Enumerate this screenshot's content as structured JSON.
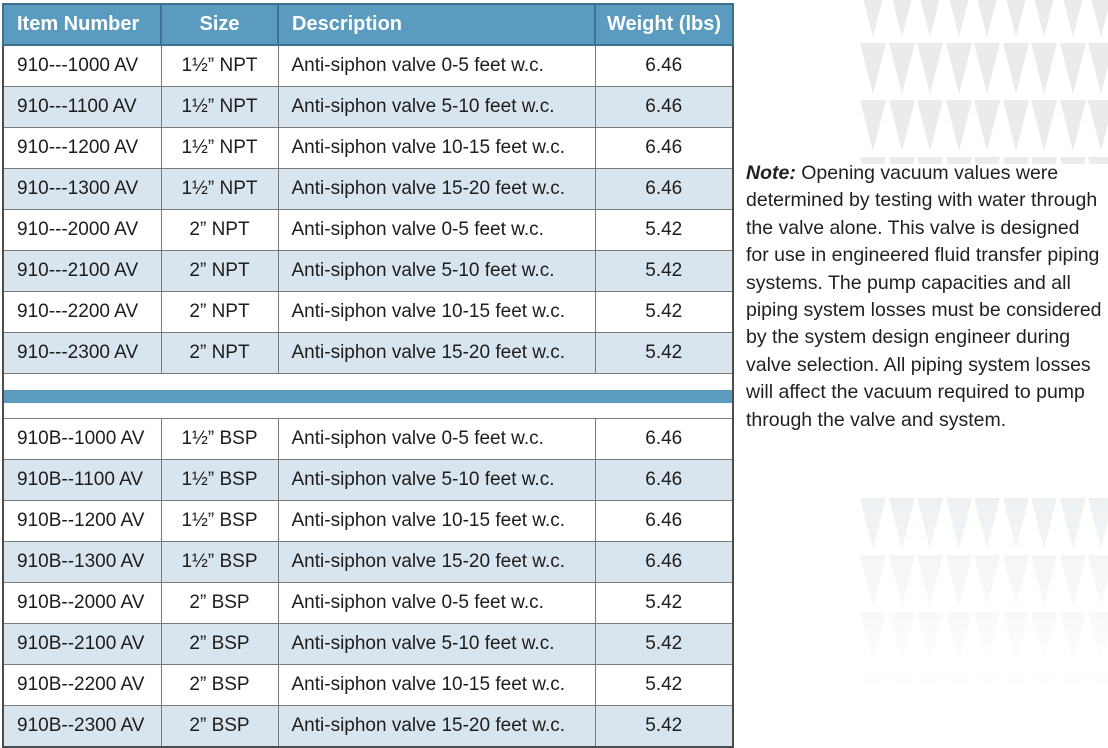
{
  "table": {
    "columns": [
      "Item Number",
      "Size",
      "Description",
      "Weight (lbs)"
    ],
    "sections": [
      {
        "rows": [
          {
            "item": "910---1000 AV",
            "size": "1½” NPT",
            "description": "Anti-siphon valve 0-5 feet w.c.",
            "weight": "6.46"
          },
          {
            "item": "910---1100 AV",
            "size": "1½” NPT",
            "description": "Anti-siphon valve 5-10 feet w.c.",
            "weight": "6.46"
          },
          {
            "item": "910---1200 AV",
            "size": "1½” NPT",
            "description": "Anti-siphon valve 10-15 feet w.c.",
            "weight": "6.46"
          },
          {
            "item": "910---1300 AV",
            "size": "1½” NPT",
            "description": "Anti-siphon valve 15-20 feet w.c.",
            "weight": "6.46"
          },
          {
            "item": "910---2000 AV",
            "size": "2” NPT",
            "description": "Anti-siphon valve 0-5 feet w.c.",
            "weight": "5.42"
          },
          {
            "item": "910---2100 AV",
            "size": "2” NPT",
            "description": "Anti-siphon valve 5-10 feet w.c.",
            "weight": "5.42"
          },
          {
            "item": "910---2200 AV",
            "size": "2” NPT",
            "description": "Anti-siphon valve 10-15 feet w.c.",
            "weight": "5.42"
          },
          {
            "item": "910---2300 AV",
            "size": "2” NPT",
            "description": "Anti-siphon valve 15-20 feet w.c.",
            "weight": "5.42"
          }
        ]
      },
      {
        "rows": [
          {
            "item": "910B--1000 AV",
            "size": "1½” BSP",
            "description": "Anti-siphon valve 0-5 feet w.c.",
            "weight": "6.46"
          },
          {
            "item": "910B--1100 AV",
            "size": "1½” BSP",
            "description": "Anti-siphon valve 5-10 feet w.c.",
            "weight": "6.46"
          },
          {
            "item": "910B--1200 AV",
            "size": "1½” BSP",
            "description": "Anti-siphon valve 10-15 feet w.c.",
            "weight": "6.46"
          },
          {
            "item": "910B--1300 AV",
            "size": "1½” BSP",
            "description": "Anti-siphon valve 15-20 feet w.c.",
            "weight": "6.46"
          },
          {
            "item": "910B--2000 AV",
            "size": "2” BSP",
            "description": "Anti-siphon valve 0-5 feet w.c.",
            "weight": "5.42"
          },
          {
            "item": "910B--2100 AV",
            "size": "2” BSP",
            "description": "Anti-siphon valve 5-10 feet w.c.",
            "weight": "5.42"
          },
          {
            "item": "910B--2200 AV",
            "size": "2” BSP",
            "description": "Anti-siphon valve 10-15 feet w.c.",
            "weight": "5.42"
          },
          {
            "item": "910B--2300 AV",
            "size": "2” BSP",
            "description": "Anti-siphon valve 15-20 feet w.c.",
            "weight": "5.42"
          }
        ]
      }
    ]
  },
  "note": {
    "label": "Note:",
    "text": " Opening vacuum values were determined by testing with water through the valve alone. This valve is designed for use in engineered fluid transfer piping systems. The pump capacities and all piping system losses must be considered by the system design engineer during valve selection. All piping system losses will affect the vacuum required to pump through the valve and system."
  },
  "colors": {
    "header_bg": "#5a9bbf",
    "row_alt_bg": "#d8e4ee",
    "separator_bg": "#5a9bbf",
    "border_inner": "#7a7a7a",
    "border_outer": "#4d4d4d",
    "header_text": "#ffffff",
    "body_text": "#1d1d1d",
    "note_text": "#231f20",
    "watermark_top": "#e9ebed",
    "watermark_bottom": "#eef1f3"
  }
}
